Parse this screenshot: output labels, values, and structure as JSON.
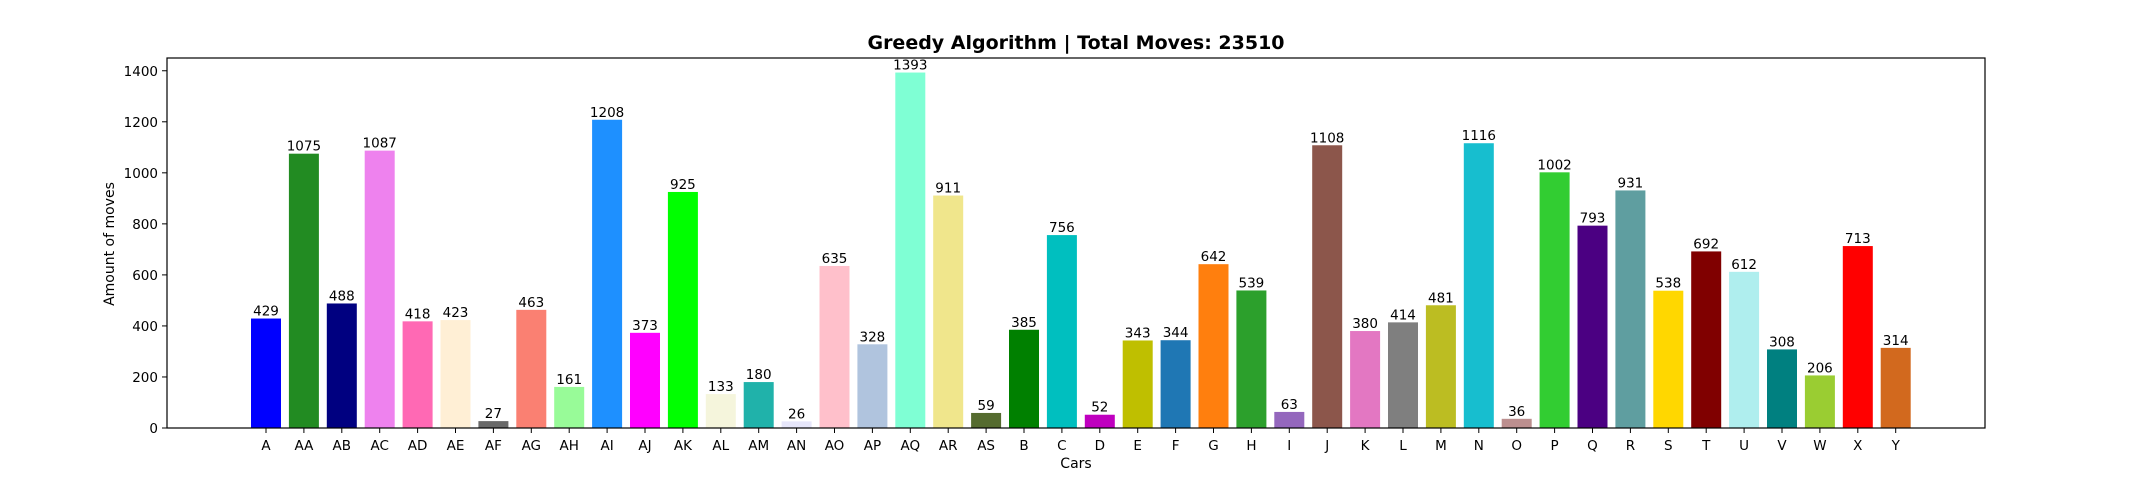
{
  "chart_data": {
    "type": "bar",
    "title": "Greedy Algorithm | Total Moves: 23510",
    "xlabel": "Cars",
    "ylabel": "Amount of moves",
    "ylim": [
      0,
      1450
    ],
    "yticks": [
      0,
      200,
      400,
      600,
      800,
      1000,
      1200,
      1400
    ],
    "grid": false,
    "legend": "none",
    "categories": [
      "A",
      "AA",
      "AB",
      "AC",
      "AD",
      "AE",
      "AF",
      "AG",
      "AH",
      "AI",
      "AJ",
      "AK",
      "AL",
      "AM",
      "AN",
      "AO",
      "AP",
      "AQ",
      "AR",
      "AS",
      "B",
      "C",
      "D",
      "E",
      "F",
      "G",
      "H",
      "I",
      "J",
      "K",
      "L",
      "M",
      "N",
      "O",
      "P",
      "Q",
      "R",
      "S",
      "T",
      "U",
      "V",
      "W",
      "X",
      "Y"
    ],
    "values": [
      429,
      1075,
      488,
      1087,
      418,
      423,
      27,
      463,
      161,
      1208,
      373,
      925,
      133,
      180,
      26,
      635,
      328,
      1393,
      911,
      59,
      385,
      756,
      52,
      343,
      344,
      642,
      539,
      63,
      1108,
      380,
      414,
      481,
      1116,
      36,
      1002,
      793,
      931,
      538,
      692,
      612,
      308,
      206,
      713,
      314
    ],
    "colors": [
      "#0000ff",
      "#228b22",
      "#000080",
      "#ee82ee",
      "#ff69b4",
      "#ffefd5",
      "#696969",
      "#fa8072",
      "#98fb98",
      "#1e90ff",
      "#ff00ff",
      "#00ff00",
      "#f5f5dc",
      "#20b2aa",
      "#e6e6fa",
      "#ffc0cb",
      "#b0c4de",
      "#7fffd4",
      "#f0e68c",
      "#556b2f",
      "#008000",
      "#00bfbf",
      "#bf00bf",
      "#bfbf00",
      "#1f77b4",
      "#ff7f0e",
      "#2ca02c",
      "#9467bd",
      "#8c564b",
      "#e377c2",
      "#7f7f7f",
      "#bcbd22",
      "#17becf",
      "#bc8f8f",
      "#32cd32",
      "#4b0082",
      "#5f9ea0",
      "#ffd700",
      "#800000",
      "#afeeee",
      "#008080",
      "#9acd32",
      "#ff0000",
      "#d2691e"
    ]
  }
}
